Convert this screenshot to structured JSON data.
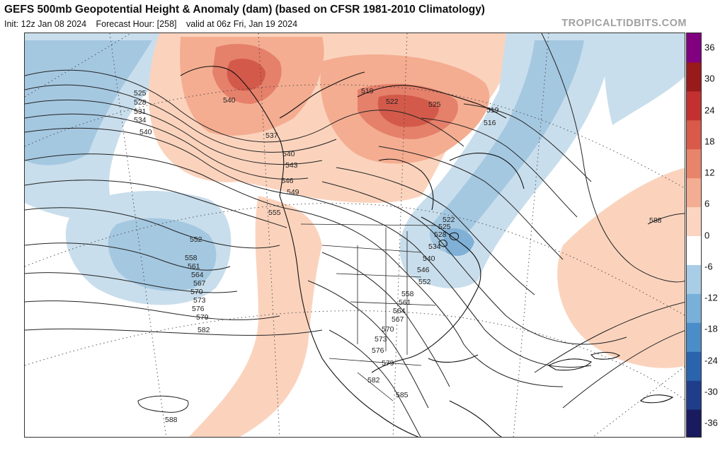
{
  "header": {
    "title": "GEFS 500mb Geopotential Height & Anomaly (dam) (based on CFSR 1981-2010 Climatology)",
    "init": "Init: 12z Jan 08 2024",
    "forecast_hour": "Forecast Hour: [258]",
    "valid": "valid at 06z Fri, Jan 19 2024",
    "brand": "TROPICALTIDBITS.COM"
  },
  "colorbar": {
    "labels": [
      "36",
      "30",
      "24",
      "18",
      "12",
      "6",
      "0",
      "-6",
      "-12",
      "-18",
      "-24",
      "-30",
      "-36"
    ],
    "colors": [
      "#1a1a5e",
      "#1f3d8a",
      "#2a64ad",
      "#4b8dc8",
      "#79b0d9",
      "#a9cde6",
      "#ffffff",
      "#fbd5c0",
      "#f3ad92",
      "#e8846a",
      "#d95a48",
      "#c33030",
      "#991a1a",
      "#800080"
    ]
  },
  "map": {
    "anomaly_colors": {
      "warm_light": "#fbd3bd",
      "warm_mid": "#f4ad91",
      "warm_strong": "#e5806a",
      "warm_core": "#d35a4a",
      "cool_light": "#c9deec",
      "cool_mid": "#a5c8e1",
      "cool_strong": "#80b0d6"
    },
    "contour_labels": [
      {
        "text": "525"
      },
      {
        "text": "528"
      },
      {
        "text": "531"
      },
      {
        "text": "534"
      },
      {
        "text": "540"
      },
      {
        "text": "540"
      },
      {
        "text": "537"
      },
      {
        "text": "540"
      },
      {
        "text": "543"
      },
      {
        "text": "546"
      },
      {
        "text": "549"
      },
      {
        "text": "555"
      },
      {
        "text": "552"
      },
      {
        "text": "558"
      },
      {
        "text": "561"
      },
      {
        "text": "564"
      },
      {
        "text": "567"
      },
      {
        "text": "570"
      },
      {
        "text": "573"
      },
      {
        "text": "576"
      },
      {
        "text": "579"
      },
      {
        "text": "582"
      },
      {
        "text": "588"
      },
      {
        "text": "519"
      },
      {
        "text": "522"
      },
      {
        "text": "525"
      },
      {
        "text": "519"
      },
      {
        "text": "516"
      },
      {
        "text": "522"
      },
      {
        "text": "525"
      },
      {
        "text": "528"
      },
      {
        "text": "534"
      },
      {
        "text": "540"
      },
      {
        "text": "546"
      },
      {
        "text": "552"
      },
      {
        "text": "558"
      },
      {
        "text": "561"
      },
      {
        "text": "564"
      },
      {
        "text": "567"
      },
      {
        "text": "570"
      },
      {
        "text": "573"
      },
      {
        "text": "576"
      },
      {
        "text": "579"
      },
      {
        "text": "582"
      },
      {
        "text": "585"
      },
      {
        "text": "588"
      }
    ]
  }
}
